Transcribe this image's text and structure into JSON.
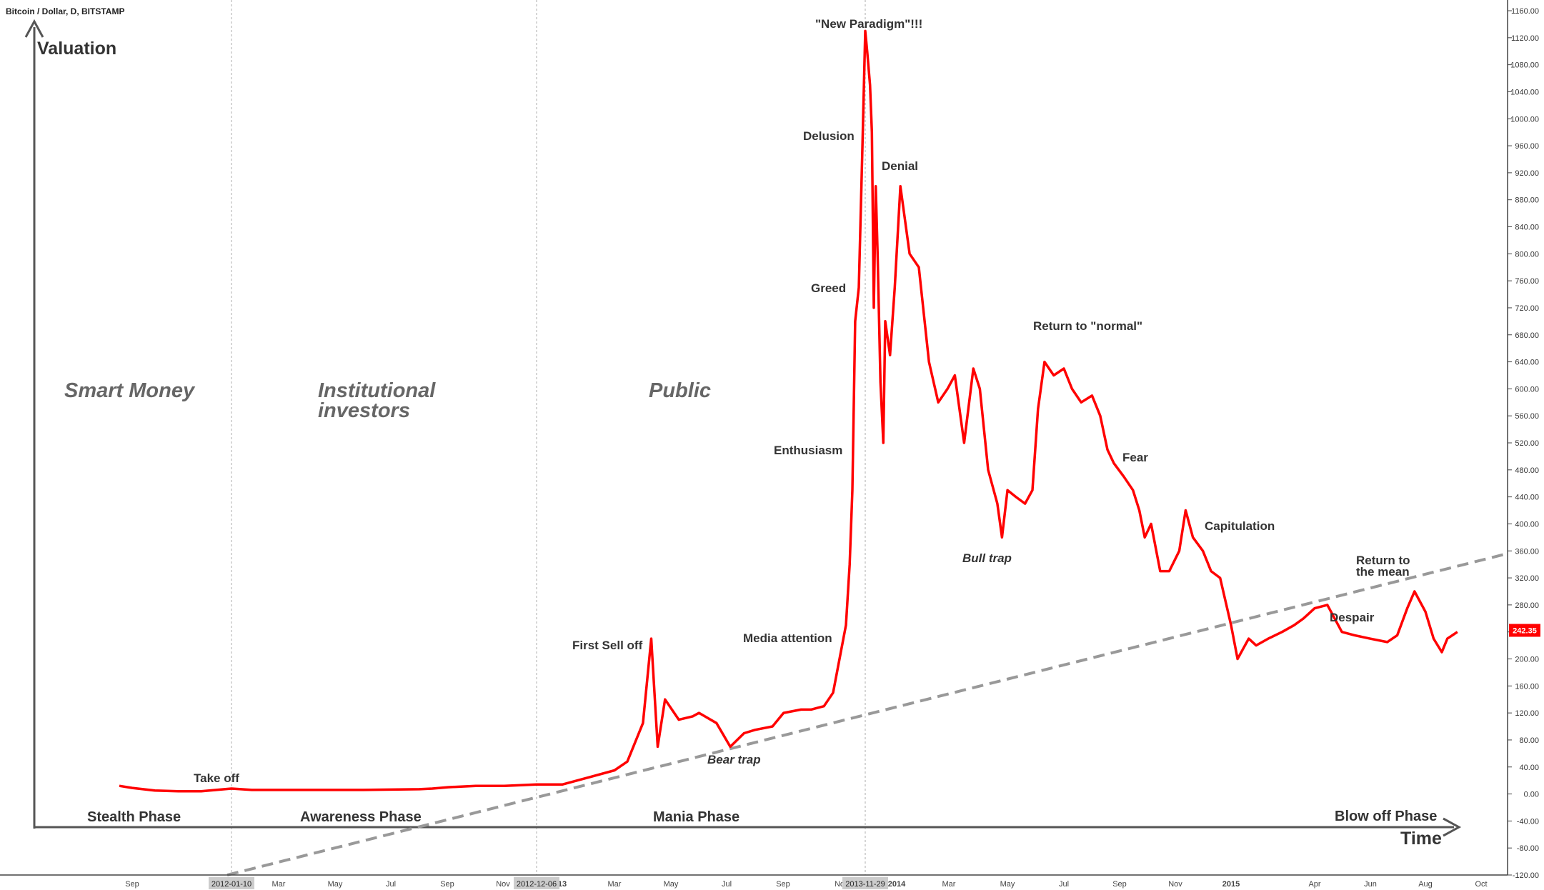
{
  "chart_data": {
    "type": "line",
    "title": "Bitcoin / Dollar, D, BITSTAMP",
    "ylim": [
      -120,
      1160
    ],
    "y_ticks": [
      "1160.00",
      "1120.00",
      "1080.00",
      "1040.00",
      "1000.00",
      "960.00",
      "920.00",
      "880.00",
      "840.00",
      "800.00",
      "760.00",
      "720.00",
      "680.00",
      "640.00",
      "600.00",
      "560.00",
      "520.00",
      "480.00",
      "440.00",
      "400.00",
      "360.00",
      "320.00",
      "280.00",
      "240.00",
      "200.00",
      "160.00",
      "120.00",
      "80.00",
      "40.00",
      "0.00",
      "-40.00",
      "-80.00",
      "-120.00"
    ],
    "x_ticks": [
      "Sep",
      "Mar",
      "May",
      "Jul",
      "Sep",
      "Nov",
      "13",
      "Mar",
      "May",
      "Jul",
      "Sep",
      "No",
      "2014",
      "Mar",
      "May",
      "Jul",
      "Sep",
      "Nov",
      "2015",
      "Apr",
      "Jun",
      "Aug",
      "Oct"
    ],
    "date_markers": [
      "2012-01-10",
      "2012-12-06",
      "2013-11-29"
    ],
    "last_price": "242.35",
    "series": [
      {
        "color": "#ff0000",
        "x": [
          "2011-08-15",
          "2011-09-01",
          "2011-10-01",
          "2011-11-01",
          "2011-12-01",
          "2012-01-10",
          "2012-02-01",
          "2012-04-01",
          "2012-06-01",
          "2012-08-01",
          "2012-08-15",
          "2012-09-01",
          "2012-10-01",
          "2012-11-01",
          "2012-12-06",
          "2013-01-01",
          "2013-02-01",
          "2013-03-01",
          "2013-03-15",
          "2013-04-01",
          "2013-04-10",
          "2013-04-17",
          "2013-04-25",
          "2013-05-10",
          "2013-05-25",
          "2013-06-01",
          "2013-06-20",
          "2013-07-05",
          "2013-07-20",
          "2013-08-01",
          "2013-08-20",
          "2013-09-01",
          "2013-09-20",
          "2013-10-01",
          "2013-10-15",
          "2013-10-25",
          "2013-11-01",
          "2013-11-08",
          "2013-11-12",
          "2013-11-15",
          "2013-11-18",
          "2013-11-22",
          "2013-11-26",
          "2013-11-29",
          "2013-12-01",
          "2013-12-04",
          "2013-12-06",
          "2013-12-08",
          "2013-12-10",
          "2013-12-12",
          "2013-12-15",
          "2013-12-18",
          "2013-12-20",
          "2013-12-25",
          "2013-12-30",
          "2014-01-05",
          "2014-01-15",
          "2014-01-25",
          "2014-02-05",
          "2014-02-15",
          "2014-02-25",
          "2014-03-05",
          "2014-03-15",
          "2014-03-25",
          "2014-04-01",
          "2014-04-10",
          "2014-04-20",
          "2014-04-25",
          "2014-05-01",
          "2014-05-10",
          "2014-05-20",
          "2014-05-28",
          "2014-06-03",
          "2014-06-10",
          "2014-06-20",
          "2014-07-01",
          "2014-07-10",
          "2014-07-20",
          "2014-08-01",
          "2014-08-10",
          "2014-08-18",
          "2014-08-25",
          "2014-09-05",
          "2014-09-15",
          "2014-09-22",
          "2014-09-28",
          "2014-10-05",
          "2014-10-15",
          "2014-10-25",
          "2014-11-05",
          "2014-11-12",
          "2014-11-20",
          "2014-12-01",
          "2014-12-10",
          "2014-12-20",
          "2015-01-01",
          "2015-01-08",
          "2015-01-14",
          "2015-01-20",
          "2015-01-28",
          "2015-02-10",
          "2015-02-25",
          "2015-03-10",
          "2015-03-20",
          "2015-04-01",
          "2015-04-15",
          "2015-05-01",
          "2015-05-15",
          "2015-06-01",
          "2015-06-20",
          "2015-07-01",
          "2015-07-12",
          "2015-07-20",
          "2015-08-01",
          "2015-08-10",
          "2015-08-19",
          "2015-08-25",
          "2015-09-05"
        ],
        "values": [
          12,
          9,
          5,
          4,
          4,
          8,
          6,
          6,
          6,
          7,
          8,
          10,
          12,
          12,
          14,
          14,
          25,
          35,
          48,
          105,
          230,
          70,
          140,
          110,
          115,
          120,
          105,
          70,
          90,
          95,
          100,
          120,
          125,
          125,
          130,
          150,
          200,
          250,
          340,
          450,
          700,
          750,
          960,
          1130,
          1100,
          1050,
          980,
          720,
          900,
          800,
          610,
          520,
          700,
          650,
          750,
          900,
          800,
          780,
          640,
          580,
          600,
          620,
          520,
          630,
          600,
          480,
          430,
          380,
          450,
          440,
          430,
          450,
          570,
          640,
          620,
          630,
          600,
          580,
          590,
          560,
          510,
          490,
          470,
          450,
          420,
          380,
          400,
          330,
          330,
          360,
          420,
          380,
          360,
          330,
          320,
          250,
          200,
          215,
          230,
          220,
          230,
          240,
          250,
          260,
          275,
          280,
          240,
          235,
          230,
          225,
          235,
          275,
          300,
          270,
          230,
          210,
          230,
          240
        ]
      }
    ],
    "annotations": {
      "new_paradigm": "\"New Paradigm\"!!!",
      "delusion": "Delusion",
      "denial": "Denial",
      "greed": "Greed",
      "enthusiasm": "Enthusiasm",
      "media_attention": "Media attention",
      "first_sell_off": "First Sell off",
      "bear_trap": "Bear trap",
      "take_off": "Take off",
      "bull_trap": "Bull trap",
      "return_normal": "Return to \"normal\"",
      "fear": "Fear",
      "capitulation": "Capitulation",
      "return_mean_1": "Return to",
      "return_mean_2": "the mean",
      "despair": "Despair"
    },
    "participants": {
      "smart_money": "Smart Money",
      "institutional_1": "Institutional",
      "institutional_2": "investors",
      "public": "Public"
    },
    "phases": {
      "stealth": "Stealth Phase",
      "awareness": "Awareness Phase",
      "mania": "Mania Phase",
      "blow_off": "Blow off Phase"
    },
    "ylabel": "Valuation",
    "xlabel": "Time"
  }
}
